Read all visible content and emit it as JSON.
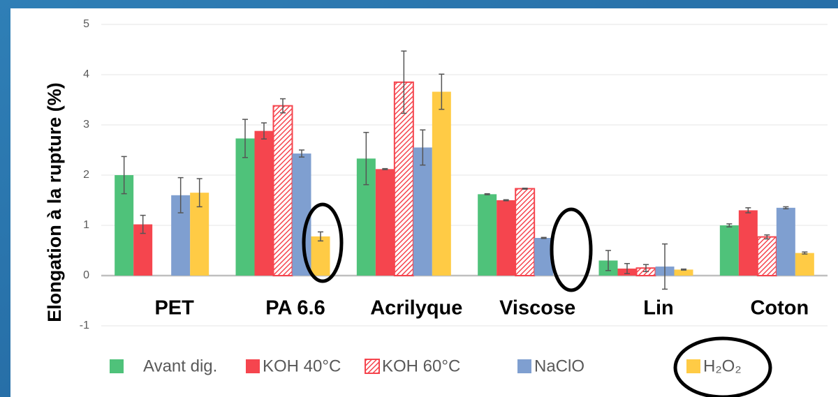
{
  "chart_data": {
    "type": "bar",
    "ylabel": "Elongation à la rupture (%)",
    "categories": [
      "PET",
      "PA 6.6",
      "Acrilyque",
      "Viscose",
      "Lin",
      "Coton"
    ],
    "series": [
      {
        "name": "Avant dig.",
        "color": "#4fc27a",
        "hatch": false,
        "values": [
          2.0,
          2.73,
          2.33,
          1.62,
          0.3,
          1.0
        ],
        "errors": [
          0.37,
          0.38,
          0.52,
          0.01,
          0.2,
          0.03
        ]
      },
      {
        "name": "KOH 40°C",
        "color": "#f5454e",
        "hatch": false,
        "values": [
          1.02,
          2.88,
          2.12,
          1.5,
          0.14,
          1.3
        ],
        "errors": [
          0.18,
          0.16,
          0.01,
          0.01,
          0.1,
          0.05
        ]
      },
      {
        "name": "KOH 60°C",
        "color": "#f5454e",
        "hatch": true,
        "values": [
          null,
          3.38,
          3.85,
          1.73,
          0.15,
          0.77
        ],
        "errors": [
          null,
          0.14,
          0.62,
          0.01,
          0.07,
          0.04
        ]
      },
      {
        "name": "NaClO",
        "color": "#7f9fd0",
        "hatch": false,
        "values": [
          1.6,
          2.43,
          2.55,
          0.75,
          0.18,
          1.35
        ],
        "errors": [
          0.35,
          0.07,
          0.35,
          0.01,
          0.45,
          0.02
        ]
      },
      {
        "name": "H₂O₂",
        "color": "#ffcb45",
        "hatch": false,
        "values": [
          1.65,
          0.78,
          3.66,
          null,
          0.12,
          0.45
        ],
        "errors": [
          0.28,
          0.09,
          0.35,
          null,
          0.01,
          0.02
        ]
      }
    ],
    "ylim": [
      -1,
      5
    ],
    "yticks": [
      -1,
      0,
      1,
      2,
      3,
      4,
      5
    ],
    "grid": true,
    "legend": "bottom"
  }
}
